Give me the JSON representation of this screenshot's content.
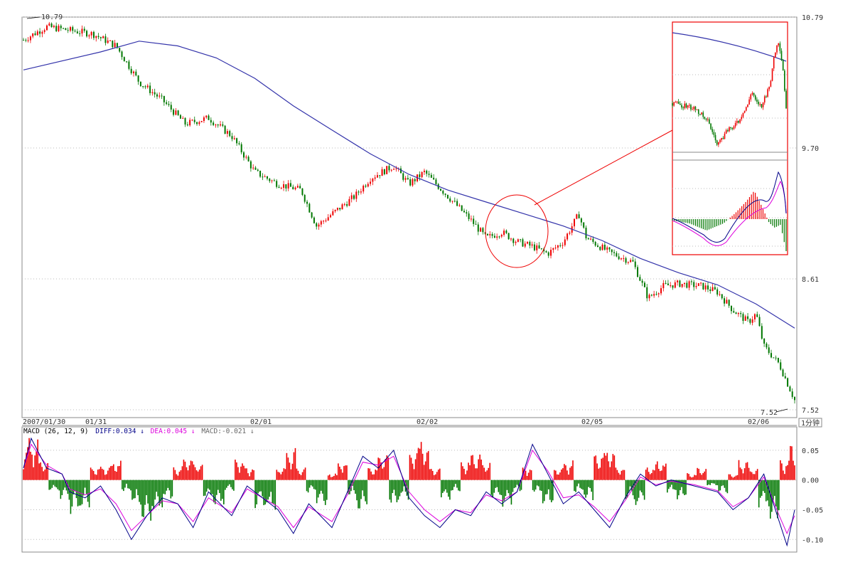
{
  "chart_data": [
    {
      "type": "candlestick",
      "title": "",
      "price_high_marker": "10.79",
      "price_low_marker": "7.52",
      "y_axis_ticks": [
        "10.79",
        "9.70",
        "8.61",
        "7.52"
      ],
      "ylim": [
        7.52,
        10.79
      ],
      "x_axis_labels": [
        "2007/01/30",
        "01/31",
        "02/01",
        "02/02",
        "02/05",
        "02/06"
      ],
      "period_label": "1分钟",
      "grid": "dotted horizontal",
      "moving_average_path": [
        [
          0,
          10.35
        ],
        [
          0.1,
          10.5
        ],
        [
          0.15,
          10.59
        ],
        [
          0.2,
          10.55
        ],
        [
          0.25,
          10.45
        ],
        [
          0.3,
          10.28
        ],
        [
          0.35,
          10.05
        ],
        [
          0.4,
          9.85
        ],
        [
          0.45,
          9.65
        ],
        [
          0.5,
          9.48
        ],
        [
          0.55,
          9.35
        ],
        [
          0.6,
          9.25
        ],
        [
          0.65,
          9.15
        ],
        [
          0.7,
          9.05
        ],
        [
          0.75,
          8.93
        ],
        [
          0.8,
          8.78
        ],
        [
          0.85,
          8.66
        ],
        [
          0.9,
          8.56
        ],
        [
          0.95,
          8.4
        ],
        [
          1.0,
          8.2
        ]
      ],
      "price_path": [
        [
          0,
          10.6
        ],
        [
          0.03,
          10.71
        ],
        [
          0.06,
          10.68
        ],
        [
          0.09,
          10.65
        ],
        [
          0.12,
          10.55
        ],
        [
          0.15,
          10.25
        ],
        [
          0.18,
          10.1
        ],
        [
          0.21,
          9.9
        ],
        [
          0.24,
          9.95
        ],
        [
          0.27,
          9.8
        ],
        [
          0.3,
          9.5
        ],
        [
          0.33,
          9.4
        ],
        [
          0.36,
          9.35
        ],
        [
          0.38,
          9.05
        ],
        [
          0.41,
          9.2
        ],
        [
          0.43,
          9.3
        ],
        [
          0.45,
          9.45
        ],
        [
          0.48,
          9.55
        ],
        [
          0.5,
          9.4
        ],
        [
          0.52,
          9.5
        ],
        [
          0.55,
          9.3
        ],
        [
          0.58,
          9.1
        ],
        [
          0.6,
          8.95
        ],
        [
          0.62,
          9.0
        ],
        [
          0.64,
          8.92
        ],
        [
          0.66,
          8.88
        ],
        [
          0.68,
          8.82
        ],
        [
          0.7,
          8.92
        ],
        [
          0.72,
          9.15
        ],
        [
          0.73,
          8.95
        ],
        [
          0.76,
          8.83
        ],
        [
          0.79,
          8.75
        ],
        [
          0.81,
          8.45
        ],
        [
          0.83,
          8.55
        ],
        [
          0.85,
          8.57
        ],
        [
          0.88,
          8.55
        ],
        [
          0.9,
          8.5
        ],
        [
          0.92,
          8.35
        ],
        [
          0.94,
          8.25
        ],
        [
          0.95,
          8.32
        ],
        [
          0.96,
          8.05
        ],
        [
          0.98,
          7.9
        ],
        [
          0.99,
          7.75
        ],
        [
          1.0,
          7.6
        ]
      ]
    },
    {
      "type": "area",
      "title": "",
      "indicator": "MACD (26, 12, 9)",
      "diff_label": "DIFF:0.034",
      "dea_label": "DEA:0.045",
      "macd_label": "MACD:-0.021",
      "arrow_symbol": "↓",
      "y_axis_ticks": [
        "0.05",
        "0.00",
        "-0.05",
        "-0.10"
      ],
      "ylim": [
        -0.12,
        0.075
      ],
      "diff_path": [
        [
          0,
          0.02
        ],
        [
          0.01,
          0.07
        ],
        [
          0.03,
          0.02
        ],
        [
          0.05,
          0.01
        ],
        [
          0.06,
          -0.02
        ],
        [
          0.08,
          -0.03
        ],
        [
          0.1,
          -0.01
        ],
        [
          0.12,
          -0.05
        ],
        [
          0.14,
          -0.1
        ],
        [
          0.16,
          -0.06
        ],
        [
          0.18,
          -0.03
        ],
        [
          0.2,
          -0.04
        ],
        [
          0.22,
          -0.08
        ],
        [
          0.24,
          -0.02
        ],
        [
          0.27,
          -0.06
        ],
        [
          0.29,
          -0.01
        ],
        [
          0.31,
          -0.03
        ],
        [
          0.33,
          -0.05
        ],
        [
          0.35,
          -0.09
        ],
        [
          0.37,
          -0.04
        ],
        [
          0.4,
          -0.08
        ],
        [
          0.42,
          -0.02
        ],
        [
          0.44,
          0.04
        ],
        [
          0.46,
          0.02
        ],
        [
          0.48,
          0.05
        ],
        [
          0.5,
          -0.03
        ],
        [
          0.52,
          -0.06
        ],
        [
          0.54,
          -0.08
        ],
        [
          0.56,
          -0.05
        ],
        [
          0.58,
          -0.06
        ],
        [
          0.6,
          -0.02
        ],
        [
          0.62,
          -0.04
        ],
        [
          0.64,
          -0.02
        ],
        [
          0.66,
          0.06
        ],
        [
          0.68,
          0.01
        ],
        [
          0.7,
          -0.04
        ],
        [
          0.72,
          -0.02
        ],
        [
          0.74,
          -0.05
        ],
        [
          0.76,
          -0.08
        ],
        [
          0.78,
          -0.03
        ],
        [
          0.8,
          0.01
        ],
        [
          0.82,
          -0.01
        ],
        [
          0.84,
          0.0
        ],
        [
          0.87,
          -0.01
        ],
        [
          0.9,
          -0.02
        ],
        [
          0.92,
          -0.05
        ],
        [
          0.94,
          -0.03
        ],
        [
          0.96,
          0.01
        ],
        [
          0.98,
          -0.07
        ],
        [
          0.99,
          -0.11
        ],
        [
          1.0,
          -0.05
        ]
      ],
      "dea_path": [
        [
          0,
          0.02
        ],
        [
          0.01,
          0.06
        ],
        [
          0.03,
          0.025
        ],
        [
          0.05,
          0.01
        ],
        [
          0.06,
          -0.015
        ],
        [
          0.08,
          -0.025
        ],
        [
          0.1,
          -0.015
        ],
        [
          0.12,
          -0.04
        ],
        [
          0.14,
          -0.085
        ],
        [
          0.16,
          -0.06
        ],
        [
          0.18,
          -0.035
        ],
        [
          0.2,
          -0.04
        ],
        [
          0.22,
          -0.07
        ],
        [
          0.24,
          -0.03
        ],
        [
          0.27,
          -0.055
        ],
        [
          0.29,
          -0.015
        ],
        [
          0.31,
          -0.03
        ],
        [
          0.33,
          -0.045
        ],
        [
          0.35,
          -0.08
        ],
        [
          0.37,
          -0.045
        ],
        [
          0.4,
          -0.07
        ],
        [
          0.42,
          -0.025
        ],
        [
          0.44,
          0.03
        ],
        [
          0.46,
          0.025
        ],
        [
          0.48,
          0.04
        ],
        [
          0.5,
          -0.02
        ],
        [
          0.52,
          -0.05
        ],
        [
          0.54,
          -0.07
        ],
        [
          0.56,
          -0.05
        ],
        [
          0.58,
          -0.055
        ],
        [
          0.6,
          -0.025
        ],
        [
          0.62,
          -0.035
        ],
        [
          0.64,
          -0.02
        ],
        [
          0.66,
          0.05
        ],
        [
          0.68,
          0.015
        ],
        [
          0.7,
          -0.03
        ],
        [
          0.72,
          -0.025
        ],
        [
          0.74,
          -0.045
        ],
        [
          0.76,
          -0.07
        ],
        [
          0.78,
          -0.035
        ],
        [
          0.8,
          0.005
        ],
        [
          0.82,
          -0.008
        ],
        [
          0.84,
          -0.002
        ],
        [
          0.87,
          -0.008
        ],
        [
          0.9,
          -0.018
        ],
        [
          0.92,
          -0.045
        ],
        [
          0.94,
          -0.03
        ],
        [
          0.96,
          0.005
        ],
        [
          0.98,
          -0.06
        ],
        [
          0.99,
          -0.09
        ],
        [
          1.0,
          -0.06
        ]
      ],
      "macd_bars": [
        0.05,
        0.06,
        0.03,
        -0.02,
        -0.03,
        -0.05,
        -0.04,
        0.02,
        0.02,
        0.03,
        -0.02,
        -0.04,
        -0.06,
        -0.05,
        -0.03,
        0.02,
        0.04,
        0.03,
        -0.03,
        -0.04,
        -0.02,
        0.03,
        0.02,
        -0.04,
        -0.05,
        0.02,
        0.05,
        0.02,
        -0.02,
        -0.04,
        0.01,
        0.03,
        -0.03,
        -0.05,
        0.02,
        0.04,
        -0.04,
        -0.03,
        0.05,
        0.06,
        0.02,
        -0.03,
        -0.02,
        0.03,
        0.04,
        0.03,
        -0.03,
        -0.04,
        -0.02,
        0.02,
        -0.02,
        -0.04,
        0.02,
        0.03,
        -0.02,
        -0.03,
        0.04,
        0.05,
        0.02,
        -0.03,
        -0.04,
        0.02,
        0.03,
        -0.02,
        -0.03,
        0.01,
        0.02,
        -0.01,
        -0.02,
        0.01,
        0.03,
        0.02,
        -0.04,
        -0.06,
        0.03,
        0.06
      ],
      "colors": {
        "up": "#ee0000",
        "down": "#007700",
        "diff": "#000088",
        "dea": "#dd00dd",
        "ma": "#3333aa"
      }
    }
  ],
  "inset": {
    "type": "magnified view",
    "source_region": "circled area"
  }
}
